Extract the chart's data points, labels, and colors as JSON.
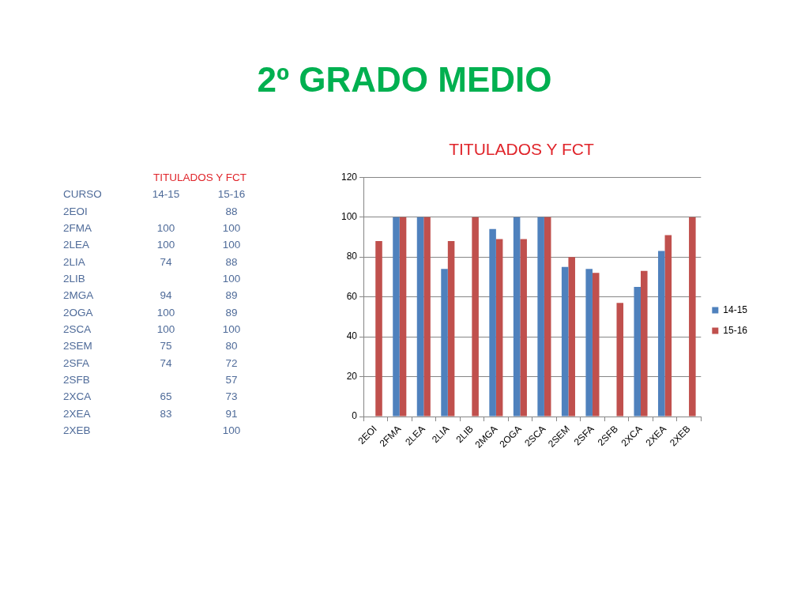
{
  "chart_data": [
    {
      "type": "other",
      "title": "TITULADOS Y FCT",
      "annotations": [
        "CURSO"
      ],
      "categories": [
        "2EOI",
        "2FMA",
        "2LEA",
        "2LIA",
        "2LIB",
        "2MGA",
        "2OGA",
        "2SCA",
        "2SEM",
        "2SFA",
        "2SFB",
        "2XCA",
        "2XEA",
        "2XEB"
      ],
      "series": [
        {
          "name": "14-15",
          "values": [
            null,
            100,
            100,
            74,
            null,
            94,
            100,
            100,
            75,
            74,
            null,
            65,
            83,
            null
          ]
        },
        {
          "name": "15-16",
          "values": [
            88,
            100,
            100,
            88,
            100,
            89,
            89,
            100,
            80,
            72,
            57,
            73,
            91,
            100
          ]
        }
      ],
      "data_labels": true
    },
    {
      "type": "bar",
      "title": "2º GRADO MEDIO",
      "subtitle": "TITULADOS Y FCT",
      "categories": [
        "2EOI",
        "2FMA",
        "2LEA",
        "2LIA",
        "2LIB",
        "2MGA",
        "2OGA",
        "2SCA",
        "2SEM",
        "2SFA",
        "2SFB",
        "2XCA",
        "2XEA",
        "2XEB"
      ],
      "series": [
        {
          "name": "14-15",
          "color": "#4f81bd",
          "values": [
            null,
            100,
            100,
            74,
            null,
            94,
            100,
            100,
            75,
            74,
            null,
            65,
            83,
            null
          ]
        },
        {
          "name": "15-16",
          "color": "#c0504d",
          "values": [
            88,
            100,
            100,
            88,
            100,
            89,
            89,
            100,
            80,
            72,
            57,
            73,
            91,
            100
          ]
        }
      ],
      "ylim": [
        0,
        120
      ],
      "yticks": [
        0,
        20,
        40,
        60,
        80,
        100,
        120
      ],
      "grid": "y",
      "legend": "right"
    }
  ]
}
